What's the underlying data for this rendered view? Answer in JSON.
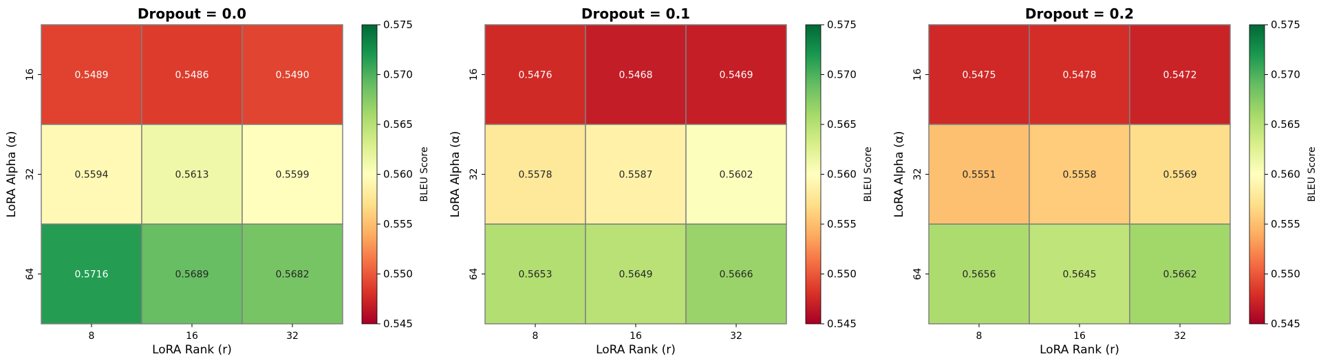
{
  "chart_data": [
    {
      "type": "heatmap",
      "title": "Dropout = 0.0",
      "xlabel": "LoRA Rank (r)",
      "ylabel": "LoRA Alpha (α)",
      "x_categories": [
        "8",
        "16",
        "32"
      ],
      "y_categories": [
        "16",
        "32",
        "64"
      ],
      "values": [
        [
          "0.5489",
          "0.5486",
          "0.5490"
        ],
        [
          "0.5594",
          "0.5613",
          "0.5599"
        ],
        [
          "0.5716",
          "0.5689",
          "0.5682"
        ]
      ],
      "colorbar": {
        "label": "BLEU Score",
        "min": 0.545,
        "max": 0.575,
        "ticks": [
          "0.545",
          "0.550",
          "0.555",
          "0.560",
          "0.565",
          "0.570",
          "0.575"
        ],
        "colormap": "RdYlGn"
      }
    },
    {
      "type": "heatmap",
      "title": "Dropout = 0.1",
      "xlabel": "LoRA Rank (r)",
      "ylabel": "LoRA Alpha (α)",
      "x_categories": [
        "8",
        "16",
        "32"
      ],
      "y_categories": [
        "16",
        "32",
        "64"
      ],
      "values": [
        [
          "0.5476",
          "0.5468",
          "0.5469"
        ],
        [
          "0.5578",
          "0.5587",
          "0.5602"
        ],
        [
          "0.5653",
          "0.5649",
          "0.5666"
        ]
      ],
      "colorbar": {
        "label": "BLEU Score",
        "min": 0.545,
        "max": 0.575,
        "ticks": [
          "0.545",
          "0.550",
          "0.555",
          "0.560",
          "0.565",
          "0.570",
          "0.575"
        ],
        "colormap": "RdYlGn"
      }
    },
    {
      "type": "heatmap",
      "title": "Dropout = 0.2",
      "xlabel": "LoRA Rank (r)",
      "ylabel": "LoRA Alpha (α)",
      "x_categories": [
        "8",
        "16",
        "32"
      ],
      "y_categories": [
        "16",
        "32",
        "64"
      ],
      "values": [
        [
          "0.5475",
          "0.5478",
          "0.5472"
        ],
        [
          "0.5551",
          "0.5558",
          "0.5569"
        ],
        [
          "0.5656",
          "0.5645",
          "0.5662"
        ]
      ],
      "colorbar": {
        "label": "BLEU Score",
        "min": 0.545,
        "max": 0.575,
        "ticks": [
          "0.545",
          "0.550",
          "0.555",
          "0.560",
          "0.565",
          "0.570",
          "0.575"
        ],
        "colormap": "RdYlGn"
      }
    }
  ]
}
